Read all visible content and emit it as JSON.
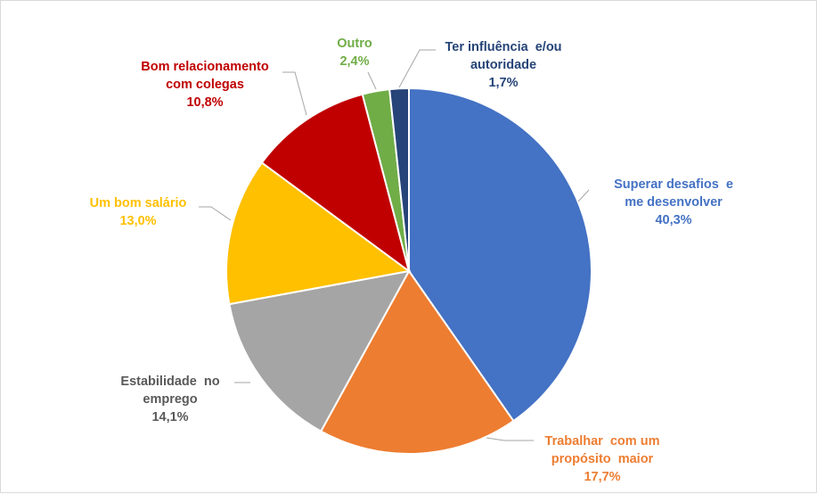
{
  "chart_data": {
    "type": "pie",
    "title": "",
    "start_angle_deg": 0,
    "direction": "clockwise",
    "slices": [
      {
        "label_lines": [
          "Superar desafios  e",
          "me desenvolver"
        ],
        "value": 40.3,
        "value_label": "40,3%",
        "color": "#4472C4"
      },
      {
        "label_lines": [
          "Trabalhar  com um",
          "propósito  maior"
        ],
        "value": 17.7,
        "value_label": "17,7%",
        "color": "#ED7D31"
      },
      {
        "label_lines": [
          "Estabilidade  no",
          "emprego"
        ],
        "value": 14.1,
        "value_label": "14,1%",
        "color": "#A5A5A5",
        "text_color": "#595959"
      },
      {
        "label_lines": [
          "Um bom salário"
        ],
        "value": 13.0,
        "value_label": "13,0%",
        "color": "#FFC000"
      },
      {
        "label_lines": [
          "Bom relacionamento",
          "com colegas"
        ],
        "value": 10.8,
        "value_label": "10,8%",
        "color": "#C00000"
      },
      {
        "label_lines": [
          "Outro"
        ],
        "value": 2.4,
        "value_label": "2,4%",
        "color": "#70AD47"
      },
      {
        "label_lines": [
          "Ter influência  e/ou",
          "autoridade"
        ],
        "value": 1.7,
        "value_label": "1,7%",
        "color": "#264478"
      }
    ],
    "legend": "none"
  }
}
